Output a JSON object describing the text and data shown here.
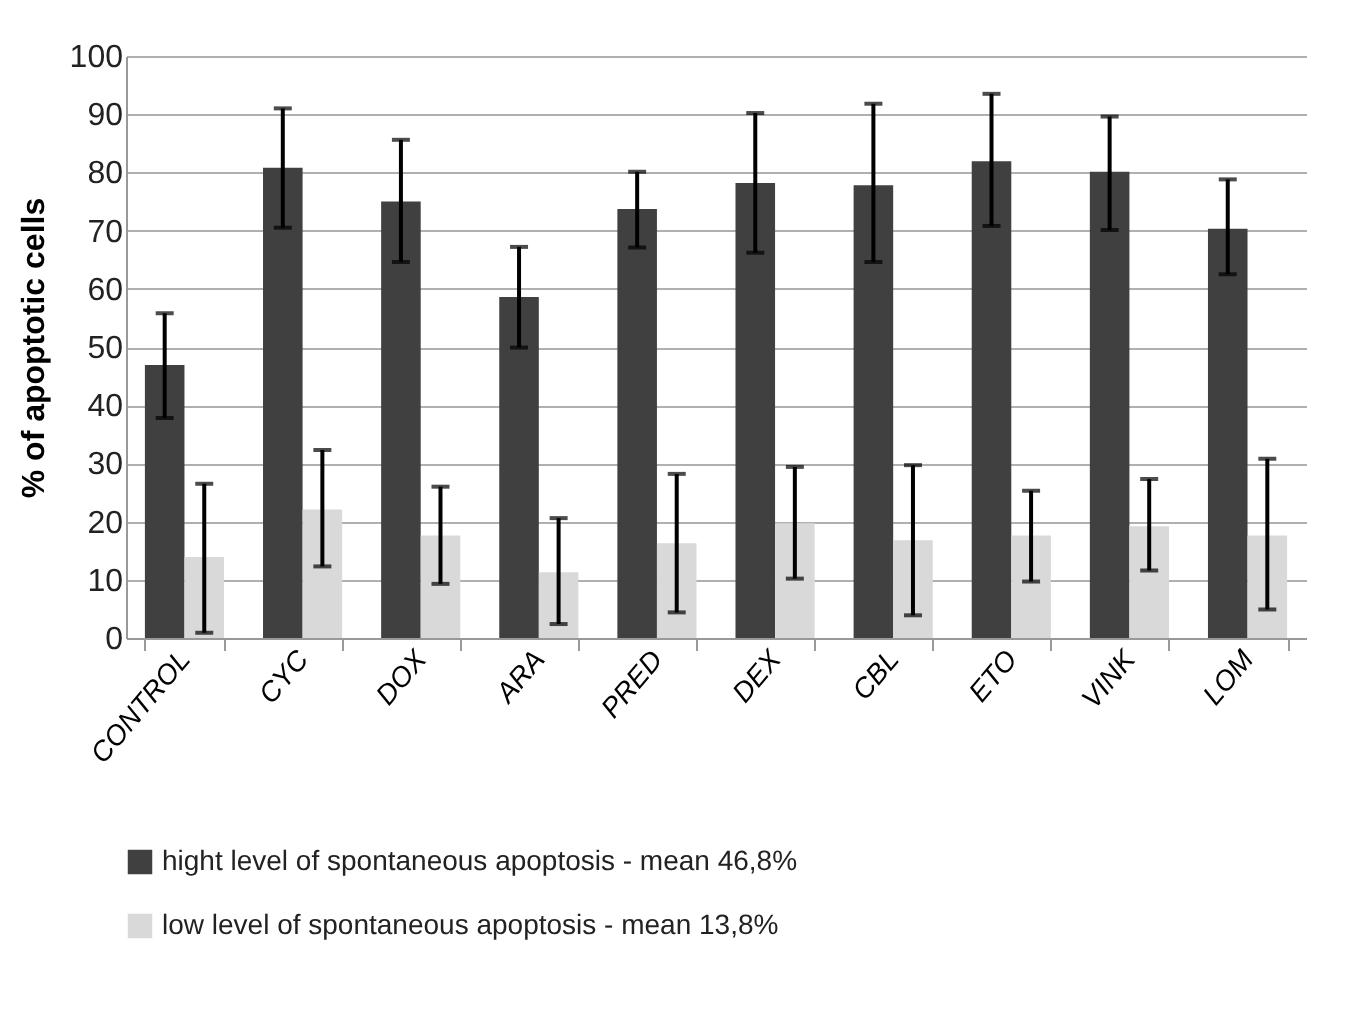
{
  "chart_data": {
    "type": "bar",
    "ylabel": "% of apoptotic cells",
    "categories": [
      "CONTROL",
      "CYC",
      "DOX",
      "ARA",
      "PRED",
      "DEX",
      "CBL",
      "ETO",
      "VINK",
      "LOM"
    ],
    "series": [
      {
        "name": "hight level of spontaneous apoptosis - mean 46,8%",
        "color": "#404040",
        "values": [
          46.9,
          80.8,
          75,
          58.6,
          73.7,
          78.2,
          77.8,
          81.9,
          80.1,
          70.3
        ],
        "errors": [
          [
            37.8,
            55.8
          ],
          [
            70.5,
            91
          ],
          [
            64.6,
            85.6
          ],
          [
            49.9,
            67.2
          ],
          [
            67.1,
            80.1
          ],
          [
            66.2,
            90.2
          ],
          [
            64.6,
            91.8
          ],
          [
            70.8,
            93.5
          ],
          [
            70.1,
            89.6
          ],
          [
            62.5,
            78.8
          ]
        ]
      },
      {
        "name": "low level of spontaneous apoptosis -  mean 13,8%",
        "color": "#d9d9d9",
        "values": [
          13.9,
          22.1,
          17.6,
          11.3,
          16.3,
          19.7,
          16.8,
          17.6,
          19.2,
          17.6
        ],
        "errors": [
          [
            0.9,
            26.5
          ],
          [
            12.3,
            32.3
          ],
          [
            9.3,
            26
          ],
          [
            2.4,
            20.6
          ],
          [
            4.4,
            28.2
          ],
          [
            10.2,
            29.4
          ],
          [
            3.9,
            29.7
          ],
          [
            9.7,
            25.3
          ],
          [
            11.6,
            27.3
          ],
          [
            4.9,
            30.8
          ]
        ]
      }
    ],
    "ylim": [
      0,
      100
    ],
    "yticks": [
      0,
      10,
      20,
      30,
      40,
      50,
      60,
      70,
      80,
      90,
      100
    ],
    "grid": "y",
    "legend": "bottom"
  }
}
